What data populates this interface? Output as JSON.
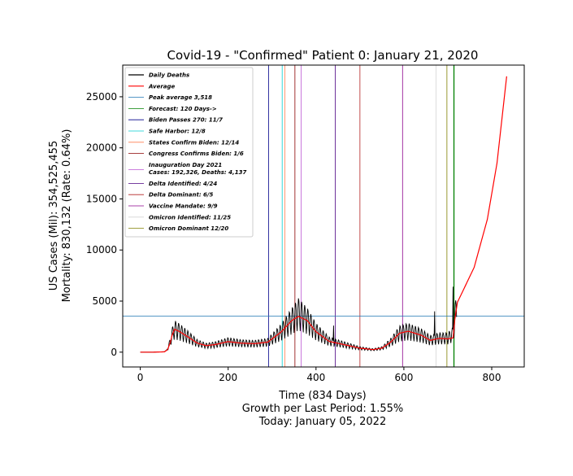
{
  "chart_data": {
    "type": "line",
    "title": "Covid-19 - \"Confirmed\" Patient 0: January 21, 2020",
    "xlabel_lines": [
      "Time (834 Days)",
      "Growth per Last Period: 1.55%",
      "Today: January 05, 2022"
    ],
    "ylabel_lines": [
      "US Cases (Mil): 354,525,455",
      "Mortality: 830,132 (Rate: 0.64%)"
    ],
    "xlim": [
      -40,
      874
    ],
    "ylim": [
      -1450,
      28100
    ],
    "x_ticks": [
      0,
      200,
      400,
      600,
      800
    ],
    "y_ticks": [
      0,
      5000,
      10000,
      15000,
      20000,
      25000
    ],
    "grid": false,
    "legend_position": "top-left",
    "colors": {
      "daily": "#000000",
      "average": "#ff0000"
    },
    "series": [
      {
        "name": "Daily Deaths",
        "color": "#000000",
        "anchors": [
          [
            0,
            0
          ],
          [
            30,
            0
          ],
          [
            55,
            40
          ],
          [
            62,
            300
          ],
          [
            68,
            1000
          ],
          [
            72,
            1700
          ],
          [
            78,
            2300
          ],
          [
            90,
            2050
          ],
          [
            110,
            1500
          ],
          [
            130,
            900
          ],
          [
            150,
            650
          ],
          [
            170,
            750
          ],
          [
            200,
            1050
          ],
          [
            230,
            900
          ],
          [
            260,
            850
          ],
          [
            290,
            1000
          ],
          [
            320,
            2000
          ],
          [
            345,
            3200
          ],
          [
            360,
            3900
          ],
          [
            380,
            3200
          ],
          [
            400,
            2100
          ],
          [
            430,
            1100
          ],
          [
            470,
            700
          ],
          [
            500,
            400
          ],
          [
            530,
            250
          ],
          [
            550,
            400
          ],
          [
            570,
            1000
          ],
          [
            590,
            1900
          ],
          [
            610,
            2100
          ],
          [
            640,
            1700
          ],
          [
            660,
            1200
          ],
          [
            680,
            1400
          ],
          [
            700,
            1400
          ],
          [
            712,
            1800
          ],
          [
            716,
            3200
          ],
          [
            720,
            4600
          ]
        ],
        "spikes": [
          [
            440,
            2600
          ],
          [
            670,
            4000
          ],
          [
            712,
            6400
          ]
        ]
      },
      {
        "name": "Average",
        "color": "#ff0000",
        "anchors": [
          [
            0,
            0
          ],
          [
            30,
            0
          ],
          [
            55,
            30
          ],
          [
            62,
            250
          ],
          [
            68,
            900
          ],
          [
            72,
            1600
          ],
          [
            78,
            2250
          ],
          [
            90,
            2000
          ],
          [
            110,
            1450
          ],
          [
            130,
            880
          ],
          [
            150,
            640
          ],
          [
            170,
            740
          ],
          [
            200,
            1030
          ],
          [
            230,
            880
          ],
          [
            260,
            830
          ],
          [
            290,
            980
          ],
          [
            320,
            1950
          ],
          [
            345,
            3100
          ],
          [
            360,
            3500
          ],
          [
            380,
            3100
          ],
          [
            400,
            2000
          ],
          [
            430,
            1050
          ],
          [
            470,
            680
          ],
          [
            500,
            390
          ],
          [
            530,
            250
          ],
          [
            550,
            390
          ],
          [
            570,
            980
          ],
          [
            590,
            1850
          ],
          [
            610,
            2050
          ],
          [
            640,
            1650
          ],
          [
            660,
            1150
          ],
          [
            680,
            1350
          ],
          [
            700,
            1300
          ],
          [
            712,
            1400
          ],
          [
            716,
            3200
          ],
          [
            722,
            4900
          ],
          [
            730,
            5600
          ],
          [
            760,
            8300
          ],
          [
            790,
            13000
          ],
          [
            812,
            18500
          ],
          [
            834,
            27000
          ]
        ]
      },
      {
        "name": "Peak average 3,518",
        "color": "#1f77b4",
        "type": "hline",
        "y": 3518
      },
      {
        "name": "Forecast: 120 Days->",
        "color": "#008000",
        "type": "vline",
        "x": 714
      },
      {
        "name": "Biden Passes 270: 11/7",
        "color": "#00008b",
        "type": "vline",
        "x": 292
      },
      {
        "name": "Safe Harbor: 12/8",
        "color": "#00ced1",
        "type": "vline",
        "x": 323
      },
      {
        "name": "States Confirm Biden: 12/14",
        "color": "#ff7f50",
        "type": "vline",
        "x": 329
      },
      {
        "name": "Congress Confirms Biden: 1/6",
        "color": "#8b0000",
        "type": "vline",
        "x": 352
      },
      {
        "name": "Inauguration Day 2021",
        "name_line2": "Cases: 192,326, Deaths: 4,137",
        "color": "#ba55d3",
        "type": "vline",
        "x": 366
      },
      {
        "name": "Delta Identified: 4/24",
        "color": "#4b0082",
        "type": "vline",
        "x": 444
      },
      {
        "name": "Delta Dominant: 6/5",
        "color": "#b22222",
        "type": "vline",
        "x": 500
      },
      {
        "name": "Vaccine Mandate: 9/9",
        "color": "#8b008b",
        "type": "vline",
        "x": 597
      },
      {
        "name": "Omicron Identified: 11/25",
        "color": "#d3d3d3",
        "type": "vline",
        "x": 673
      },
      {
        "name": "Omicron Dominant 12/20",
        "color": "#808000",
        "type": "vline",
        "x": 698
      }
    ]
  }
}
